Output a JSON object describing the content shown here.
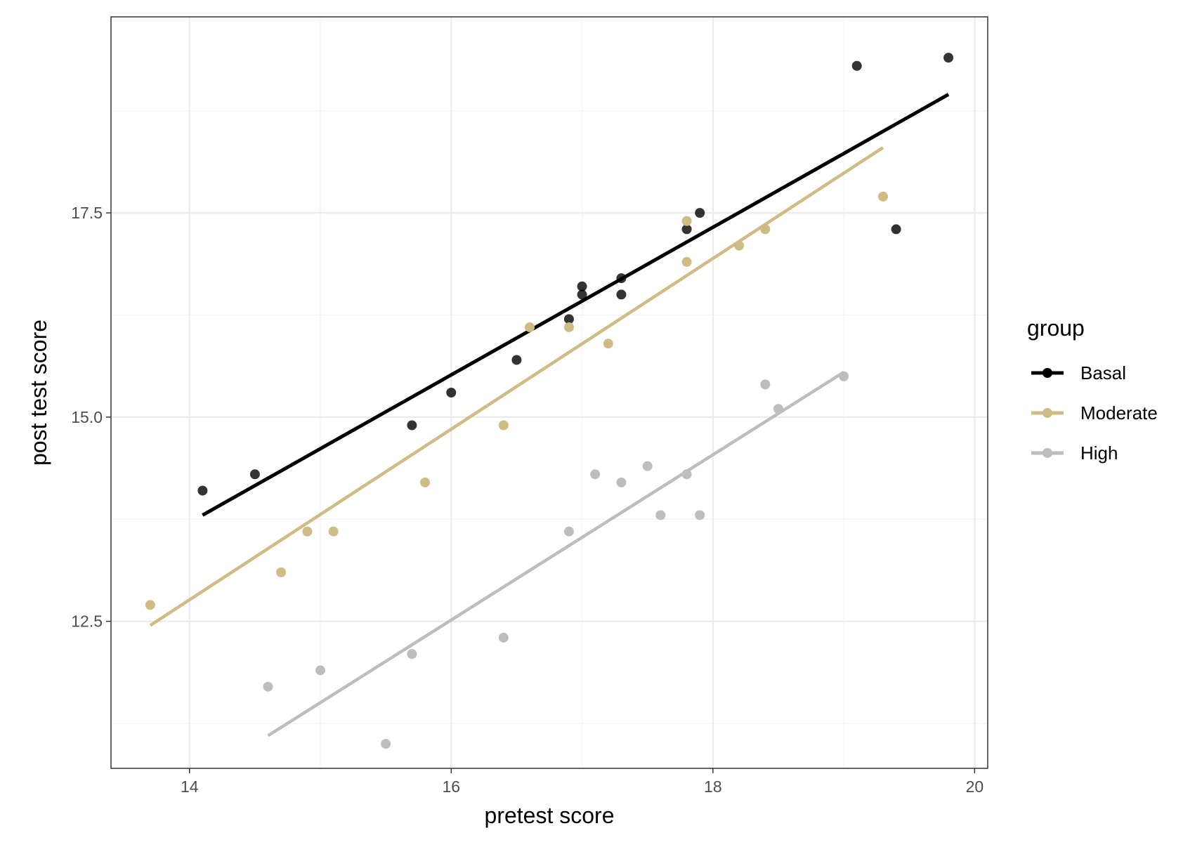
{
  "chart_data": {
    "type": "scatter",
    "xlabel": "pretest score",
    "ylabel": "post test score",
    "xlim": [
      13.4,
      20.1
    ],
    "ylim": [
      10.7,
      19.9
    ],
    "x_ticks": [
      14,
      16,
      18,
      20
    ],
    "x_tick_labels": [
      "14",
      "16",
      "18",
      "20"
    ],
    "y_ticks": [
      12.5,
      15.0,
      17.5
    ],
    "y_tick_labels": [
      "12.5",
      "15.0",
      "17.5"
    ],
    "x_minor_gridlines": [
      15,
      17,
      19
    ],
    "y_minor_gridlines": [
      11.25,
      13.75,
      16.25,
      18.75
    ],
    "grid": true,
    "legend": {
      "title": "group",
      "position": "right",
      "entries": [
        "Basal",
        "Moderate",
        "High"
      ]
    },
    "colors": {
      "Basal": "#000000",
      "Moderate": "#cfbb84",
      "High": "#bdbdbd"
    },
    "series": [
      {
        "name": "Basal",
        "points": [
          [
            14.1,
            14.1
          ],
          [
            14.5,
            14.3
          ],
          [
            15.7,
            14.9
          ],
          [
            16.0,
            15.3
          ],
          [
            16.5,
            15.7
          ],
          [
            16.9,
            16.2
          ],
          [
            17.0,
            16.6
          ],
          [
            17.0,
            16.5
          ],
          [
            17.3,
            16.7
          ],
          [
            17.3,
            16.5
          ],
          [
            17.8,
            17.3
          ],
          [
            17.9,
            17.5
          ],
          [
            19.1,
            19.3
          ],
          [
            19.4,
            17.3
          ],
          [
            19.8,
            19.4
          ]
        ],
        "fit": [
          [
            14.1,
            13.8
          ],
          [
            19.8,
            18.95
          ]
        ]
      },
      {
        "name": "Moderate",
        "points": [
          [
            13.7,
            12.7
          ],
          [
            14.7,
            13.1
          ],
          [
            14.9,
            13.6
          ],
          [
            15.1,
            13.6
          ],
          [
            15.8,
            14.2
          ],
          [
            16.4,
            14.9
          ],
          [
            16.6,
            16.1
          ],
          [
            16.9,
            16.1
          ],
          [
            17.2,
            15.9
          ],
          [
            17.8,
            17.4
          ],
          [
            17.8,
            16.9
          ],
          [
            18.2,
            17.1
          ],
          [
            18.4,
            17.3
          ],
          [
            19.3,
            17.7
          ]
        ],
        "fit": [
          [
            13.7,
            12.45
          ],
          [
            19.3,
            18.3
          ]
        ]
      },
      {
        "name": "High",
        "points": [
          [
            14.6,
            11.7
          ],
          [
            15.0,
            11.9
          ],
          [
            15.5,
            11.0
          ],
          [
            15.7,
            12.1
          ],
          [
            16.4,
            12.3
          ],
          [
            16.9,
            13.6
          ],
          [
            17.1,
            14.3
          ],
          [
            17.3,
            14.2
          ],
          [
            17.5,
            14.4
          ],
          [
            17.6,
            13.8
          ],
          [
            17.8,
            14.3
          ],
          [
            17.9,
            13.8
          ],
          [
            18.4,
            15.4
          ],
          [
            18.5,
            15.1
          ],
          [
            19.0,
            15.5
          ]
        ],
        "fit": [
          [
            14.6,
            11.1
          ],
          [
            19.0,
            15.55
          ]
        ]
      }
    ]
  }
}
